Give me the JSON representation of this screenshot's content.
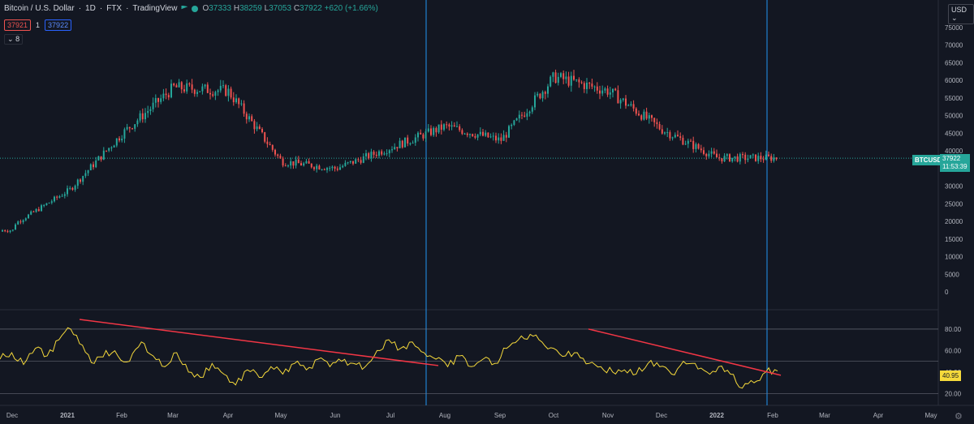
{
  "header": {
    "symbol_title": "Bitcoin / U.S. Dollar",
    "interval": "1D",
    "exchange": "FTX",
    "source": "TradingView",
    "open_label": "O",
    "open": "37333",
    "high_label": "H",
    "high": "38259",
    "low_label": "L",
    "low": "37053",
    "close_label": "C",
    "close": "37922",
    "change": "+620 (+1.66%)"
  },
  "quote": {
    "sell": "37921",
    "spread": "1",
    "buy": "37922"
  },
  "collapse_label": "8",
  "currency": "USD",
  "price_axis": [
    "75000",
    "70000",
    "65000",
    "60000",
    "55000",
    "50000",
    "45000",
    "40000",
    "35000",
    "30000",
    "25000",
    "20000",
    "15000",
    "10000",
    "5000",
    "0"
  ],
  "rsi_axis": [
    "80.00",
    "60.00",
    "40.00",
    "20.00"
  ],
  "time_axis": [
    "Dec",
    "2021",
    "Feb",
    "Mar",
    "Apr",
    "May",
    "Jun",
    "Jul",
    "Aug",
    "Sep",
    "Oct",
    "Nov",
    "Dec",
    "2022",
    "Feb",
    "Mar",
    "Apr",
    "May"
  ],
  "last_price": {
    "symbol": "BTCUSD",
    "price": "37922",
    "countdown": "11:53:39"
  },
  "rsi_value": "40.95",
  "colors": {
    "up": "#26a69a",
    "down": "#ef5350",
    "rsi": "#f5d93b",
    "trendline": "#f23645",
    "vline": "#2196f3",
    "background": "#131722"
  },
  "icons": {
    "settings": "gear-icon",
    "collapse": "chevron-down-icon"
  },
  "chart_data": [
    {
      "type": "line",
      "description_kind": "candlestick",
      "series": [
        {
          "name": "BTCUSD",
          "monthly_closes": [
            19000,
            29000,
            45000,
            58000,
            57000,
            37000,
            35000,
            41000,
            47000,
            43000,
            61000,
            57000,
            46000,
            38000
          ]
        }
      ],
      "x": [
        "Dec",
        "2021",
        "Feb",
        "Mar",
        "Apr",
        "May",
        "Jun",
        "Jul",
        "Aug",
        "Sep",
        "Oct",
        "Nov",
        "Dec",
        "2022"
      ],
      "ylim": [
        0,
        75000
      ]
    },
    {
      "type": "line",
      "series": [
        {
          "name": "RSI",
          "values": [
            52,
            58,
            47,
            62,
            55,
            70,
            80,
            65,
            48,
            60,
            55,
            50,
            68,
            55,
            45,
            58,
            40,
            35,
            48,
            38,
            28,
            42,
            35,
            45,
            38,
            48,
            42,
            52,
            45,
            50,
            48,
            45,
            60,
            70,
            62,
            68,
            58,
            52,
            45,
            55,
            45,
            52,
            48,
            62,
            70,
            75,
            68,
            62,
            55,
            58,
            48,
            45,
            40,
            42,
            38,
            48,
            45,
            38,
            50,
            48,
            40,
            45,
            38,
            25,
            30,
            40,
            41
          ]
        }
      ],
      "ylim": [
        15,
        92
      ]
    }
  ]
}
